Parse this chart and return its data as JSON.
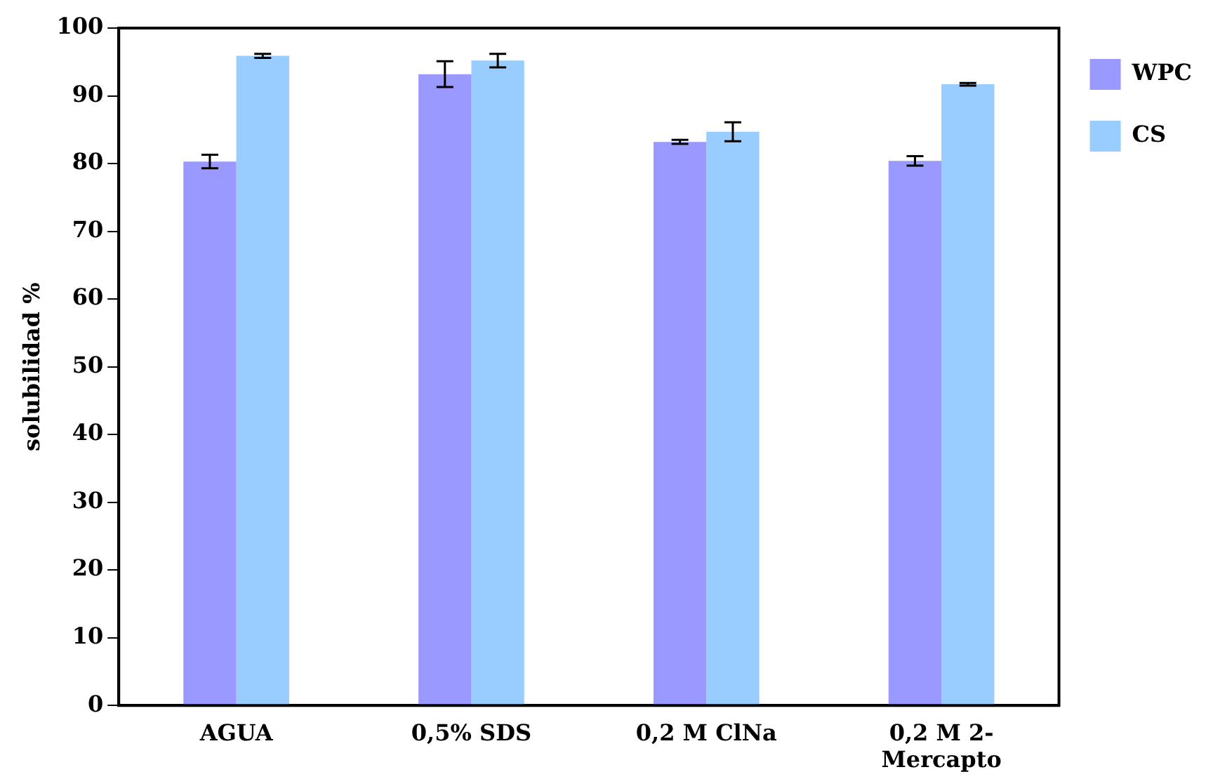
{
  "chart_data": {
    "type": "bar",
    "ylabel": "solubilidad %",
    "categories": [
      "AGUA",
      "0,5% SDS",
      "0,2 M ClNa",
      "0,2 M 2-Mercapto"
    ],
    "series": [
      {
        "name": "WPC",
        "color": "#9999ff",
        "values": [
          80.3,
          93.2,
          83.2,
          80.4
        ],
        "errors": [
          1,
          1.9,
          0.3,
          0.7
        ]
      },
      {
        "name": "CS",
        "color": "#99ccff",
        "values": [
          95.9,
          95.2,
          84.7,
          91.7
        ],
        "errors": [
          0.3,
          1,
          1.4,
          0.2
        ]
      }
    ],
    "ylim": [
      0,
      100
    ],
    "yticks": [
      0,
      10,
      20,
      30,
      40,
      50,
      60,
      70,
      80,
      90,
      100
    ],
    "grid": false,
    "legend": "top right"
  }
}
